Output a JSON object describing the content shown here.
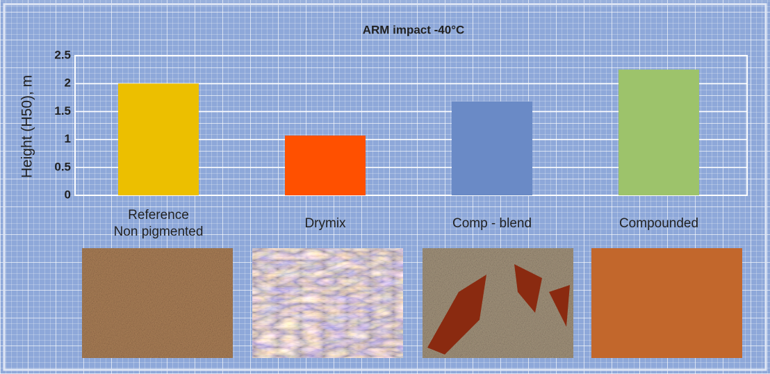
{
  "chart_data": {
    "type": "bar",
    "title": "ARM impact -40°C",
    "y_label": "Height (H50), m",
    "categories": [
      "Reference\nNon pigmented",
      "Drymix",
      "Comp - blend",
      "Compounded"
    ],
    "values": [
      2.0,
      1.07,
      1.68,
      2.25
    ],
    "colors": [
      "#ecbf00",
      "#ff5000",
      "#6a8ac6",
      "#9dc36b"
    ],
    "ylim": [
      0,
      2.5
    ],
    "yticks": [
      0,
      0.5,
      1,
      1.5,
      2,
      2.5
    ],
    "grid": true
  }
}
